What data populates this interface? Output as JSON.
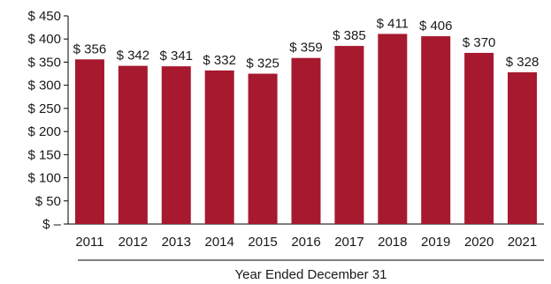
{
  "chart_data": {
    "type": "bar",
    "title": "",
    "xlabel": "Year Ended December 31",
    "ylabel": "",
    "categories": [
      "2011",
      "2012",
      "2013",
      "2014",
      "2015",
      "2016",
      "2017",
      "2018",
      "2019",
      "2020",
      "2021"
    ],
    "values": [
      356,
      342,
      341,
      332,
      325,
      359,
      385,
      411,
      406,
      370,
      328
    ],
    "data_labels": [
      "$ 356",
      "$ 342",
      "$ 341",
      "$ 332",
      "$ 325",
      "$ 359",
      "$ 385",
      "$ 411",
      "$ 406",
      "$ 370",
      "$ 328"
    ],
    "ylim": [
      0,
      450
    ],
    "yticks": [
      0,
      50,
      100,
      150,
      200,
      250,
      300,
      350,
      400,
      450
    ],
    "ytick_labels": [
      "$ –",
      "$ 50",
      "$ 100",
      "$ 150",
      "$ 200",
      "$ 250",
      "$ 300",
      "$ 350",
      "$ 400",
      "$ 450"
    ],
    "grid": false,
    "legend": "none",
    "colors": {
      "bar": "#a6192e",
      "axis": "#000000",
      "text": "#1a1a1a"
    }
  }
}
